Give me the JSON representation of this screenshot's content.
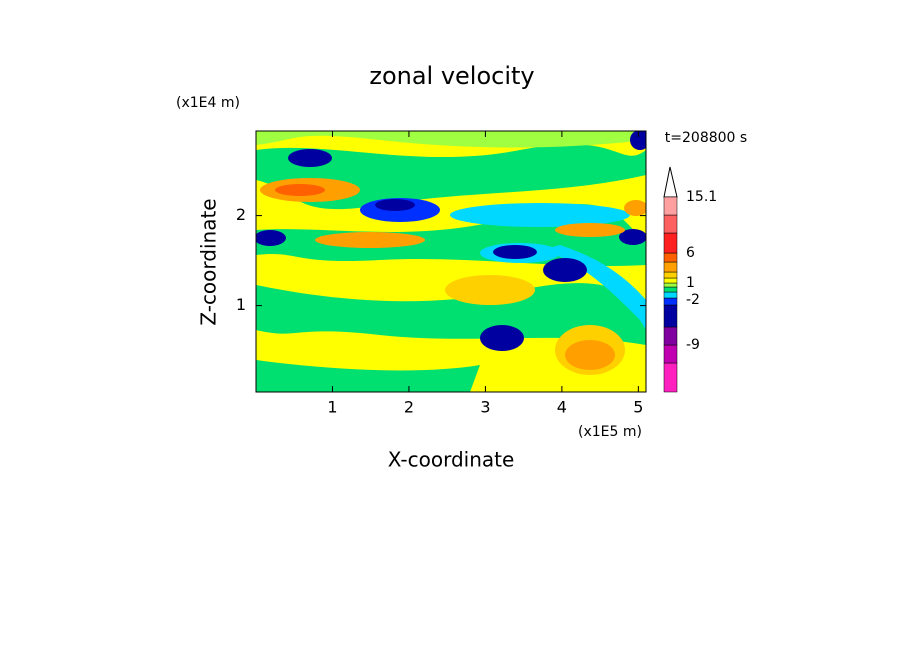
{
  "chart_data": {
    "type": "contour",
    "title": "zonal velocity",
    "x_label": "X-coordinate",
    "y_label": "Z-coordinate",
    "x_unit": "(x1E5 m)",
    "y_unit": "(x1E4 m)",
    "time_label": "t=208800 s",
    "xlim": [
      0,
      5.1
    ],
    "xticks": [
      1,
      2,
      3,
      4,
      5
    ],
    "ylim": [
      0.04,
      2.94
    ],
    "yticks": [
      1,
      2
    ],
    "colorbar": {
      "colors": [
        "#ff20c0",
        "#c000b0",
        "#8000a0",
        "#0000a0",
        "#0030ff",
        "#00d8ff",
        "#00e070",
        "#a0ff40",
        "#ffff00",
        "#ffd000",
        "#ffa000",
        "#ff6000",
        "#ff2020",
        "#ff6060",
        "#ffa0a0",
        "#ffd0d0"
      ],
      "ticks": [
        -9,
        -2,
        1,
        6,
        15.1
      ]
    }
  }
}
